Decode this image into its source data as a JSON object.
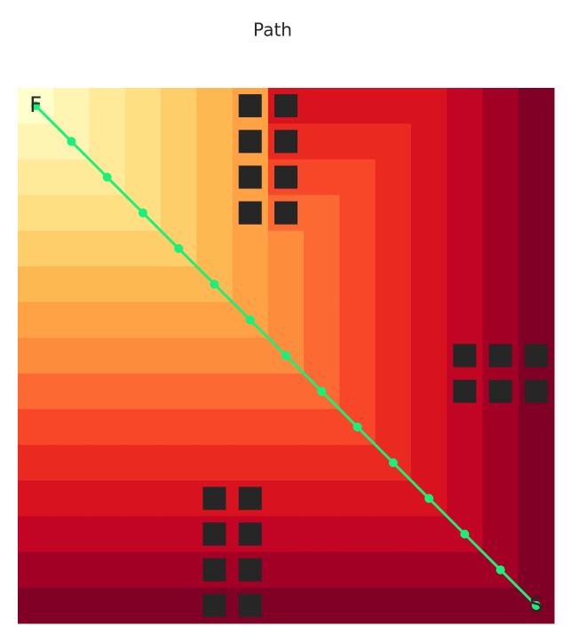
{
  "chart_data": {
    "type": "heatmap",
    "title": "Path",
    "colormap": "YlOrRd",
    "vlim": [
      0,
      14
    ],
    "values": [
      [
        0,
        1,
        2,
        3,
        4,
        5,
        6,
        11,
        11,
        11,
        11,
        11,
        12,
        13,
        14
      ],
      [
        1,
        1,
        2,
        3,
        4,
        5,
        6,
        10,
        10,
        10,
        10,
        11,
        12,
        13,
        14
      ],
      [
        2,
        2,
        2,
        3,
        4,
        5,
        6,
        9,
        9,
        9,
        10,
        11,
        12,
        13,
        14
      ],
      [
        3,
        3,
        3,
        3,
        4,
        5,
        6,
        8,
        8,
        9,
        10,
        11,
        12,
        13,
        14
      ],
      [
        4,
        4,
        4,
        4,
        4,
        5,
        6,
        7,
        8,
        9,
        10,
        11,
        12,
        13,
        14
      ],
      [
        5,
        5,
        5,
        5,
        5,
        5,
        6,
        7,
        8,
        9,
        10,
        11,
        12,
        13,
        14
      ],
      [
        6,
        6,
        6,
        6,
        6,
        6,
        6,
        7,
        8,
        9,
        10,
        11,
        12,
        13,
        14
      ],
      [
        7,
        7,
        7,
        7,
        7,
        7,
        7,
        7,
        8,
        9,
        10,
        11,
        12,
        13,
        14
      ],
      [
        8,
        8,
        8,
        8,
        8,
        8,
        8,
        8,
        8,
        9,
        10,
        11,
        12,
        13,
        14
      ],
      [
        9,
        9,
        9,
        9,
        9,
        9,
        9,
        9,
        9,
        9,
        10,
        11,
        12,
        13,
        14
      ],
      [
        10,
        10,
        10,
        10,
        10,
        10,
        10,
        10,
        10,
        10,
        10,
        11,
        12,
        13,
        14
      ],
      [
        11,
        11,
        11,
        11,
        11,
        11,
        11,
        11,
        11,
        11,
        11,
        11,
        12,
        13,
        14
      ],
      [
        12,
        12,
        12,
        12,
        12,
        12,
        12,
        12,
        12,
        12,
        12,
        12,
        12,
        13,
        14
      ],
      [
        13,
        13,
        13,
        13,
        13,
        13,
        13,
        13,
        13,
        13,
        13,
        13,
        13,
        13,
        14
      ],
      [
        14,
        14,
        14,
        14,
        14,
        14,
        14,
        14,
        14,
        14,
        14,
        14,
        14,
        14,
        14
      ]
    ],
    "obstacles": {
      "rows": [
        0,
        0,
        1,
        1,
        2,
        2,
        3,
        3,
        7,
        7,
        7,
        8,
        8,
        8,
        11,
        11,
        12,
        12,
        13,
        13,
        14,
        14
      ],
      "cols": [
        6,
        7,
        6,
        7,
        6,
        7,
        6,
        7,
        12,
        13,
        14,
        12,
        13,
        14,
        5,
        6,
        5,
        6,
        5,
        6,
        5,
        6
      ]
    },
    "path": {
      "rows": [
        0,
        1,
        2,
        3,
        4,
        5,
        6,
        7,
        8,
        9,
        10,
        11,
        12,
        13,
        14
      ],
      "cols": [
        0,
        1,
        2,
        3,
        4,
        5,
        6,
        7,
        8,
        9,
        10,
        11,
        12,
        13,
        14
      ],
      "color": "#19f07a"
    },
    "start": {
      "label": "F",
      "row": 0,
      "col": 0
    },
    "end": {
      "label": "S",
      "row": 14,
      "col": 14
    }
  }
}
